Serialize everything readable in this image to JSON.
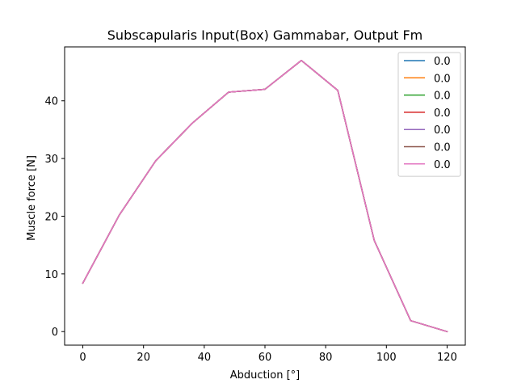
{
  "chart_data": {
    "type": "line",
    "title": "Subscapularis Input(Box) Gammabar, Output Fm",
    "xlabel": "Abduction [°]",
    "ylabel": "Muscle force [N]",
    "xlim": [
      -6,
      126
    ],
    "ylim": [
      -2.35,
      49.35
    ],
    "xticks": [
      0,
      20,
      40,
      60,
      80,
      100,
      120
    ],
    "yticks": [
      0,
      10,
      20,
      30,
      40
    ],
    "grid": false,
    "legend_position": "top-right",
    "x": [
      0,
      12,
      24,
      36,
      48,
      60,
      72,
      84,
      96,
      108,
      120
    ],
    "series": [
      {
        "name": "0.0",
        "color": "#1f77b4",
        "values": [
          8.4,
          20.2,
          29.6,
          36.1,
          41.5,
          42.0,
          47.0,
          41.8,
          15.8,
          1.9,
          0.0
        ]
      },
      {
        "name": "0.0",
        "color": "#ff7f0e",
        "values": [
          8.4,
          20.2,
          29.6,
          36.1,
          41.5,
          42.0,
          47.0,
          41.8,
          15.8,
          1.9,
          0.0
        ]
      },
      {
        "name": "0.0",
        "color": "#2ca02c",
        "values": [
          8.4,
          20.2,
          29.6,
          36.1,
          41.5,
          42.0,
          47.0,
          41.8,
          15.8,
          1.9,
          0.0
        ]
      },
      {
        "name": "0.0",
        "color": "#d62728",
        "values": [
          8.4,
          20.2,
          29.6,
          36.1,
          41.5,
          42.0,
          47.0,
          41.8,
          15.8,
          1.9,
          0.0
        ]
      },
      {
        "name": "0.0",
        "color": "#9467bd",
        "values": [
          8.4,
          20.2,
          29.6,
          36.1,
          41.5,
          42.0,
          47.0,
          41.8,
          15.8,
          1.9,
          0.0
        ]
      },
      {
        "name": "0.0",
        "color": "#8c564b",
        "values": [
          8.4,
          20.2,
          29.6,
          36.1,
          41.5,
          42.0,
          47.0,
          41.8,
          15.8,
          1.9,
          0.0
        ]
      },
      {
        "name": "0.0",
        "color": "#e377c2",
        "values": [
          8.4,
          20.2,
          29.6,
          36.1,
          41.5,
          42.0,
          47.0,
          41.8,
          15.8,
          1.9,
          0.0
        ]
      }
    ]
  }
}
